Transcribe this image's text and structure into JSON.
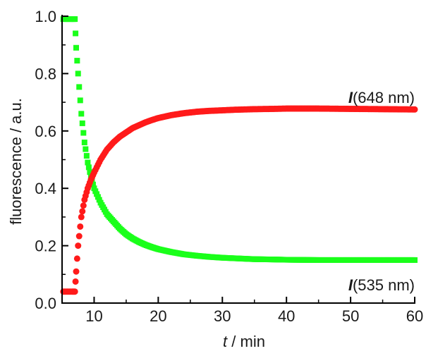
{
  "chart_data": {
    "type": "scatter",
    "xlabel_var": "t",
    "xlabel_unit": " / min",
    "ylabel": "fluorescence / a.u.",
    "xlim": [
      5,
      60
    ],
    "ylim": [
      0,
      1.0
    ],
    "x_ticks": [
      10,
      20,
      30,
      40,
      50,
      60
    ],
    "y_ticks": [
      "0.0",
      "0.2",
      "0.4",
      "0.6",
      "0.8",
      "1.0"
    ],
    "grid": false,
    "series": [
      {
        "name": "I(648 nm)",
        "label_var": "I",
        "label_text": "(648 nm)",
        "color": "#ff1a1a",
        "marker": "circle",
        "points": [
          [
            5.2,
            0.04
          ],
          [
            6.0,
            0.04
          ],
          [
            6.6,
            0.04
          ],
          [
            7.0,
            0.04
          ],
          [
            7.2,
            0.11
          ],
          [
            7.5,
            0.2
          ],
          [
            8.0,
            0.3
          ],
          [
            8.5,
            0.36
          ],
          [
            9.0,
            0.4
          ],
          [
            9.5,
            0.43
          ],
          [
            10,
            0.455
          ],
          [
            11,
            0.5
          ],
          [
            12,
            0.535
          ],
          [
            13,
            0.56
          ],
          [
            14,
            0.58
          ],
          [
            15,
            0.595
          ],
          [
            16,
            0.61
          ],
          [
            17,
            0.62
          ],
          [
            18,
            0.63
          ],
          [
            19,
            0.638
          ],
          [
            20,
            0.645
          ],
          [
            22,
            0.655
          ],
          [
            24,
            0.662
          ],
          [
            26,
            0.667
          ],
          [
            28,
            0.67
          ],
          [
            30,
            0.672
          ],
          [
            32,
            0.674
          ],
          [
            35,
            0.676
          ],
          [
            38,
            0.677
          ],
          [
            40,
            0.678
          ],
          [
            45,
            0.678
          ],
          [
            50,
            0.677
          ],
          [
            55,
            0.676
          ],
          [
            60,
            0.675
          ]
        ]
      },
      {
        "name": "I(535 nm)",
        "label_var": "I",
        "label_text": "(535 nm)",
        "color": "#1aff1a",
        "marker": "square",
        "points": [
          [
            5.2,
            0.99
          ],
          [
            6.0,
            0.99
          ],
          [
            6.6,
            0.99
          ],
          [
            7.0,
            0.99
          ],
          [
            7.2,
            0.89
          ],
          [
            7.5,
            0.8
          ],
          [
            8.0,
            0.66
          ],
          [
            8.5,
            0.56
          ],
          [
            9.0,
            0.49
          ],
          [
            9.5,
            0.44
          ],
          [
            10,
            0.4
          ],
          [
            11,
            0.35
          ],
          [
            12,
            0.31
          ],
          [
            13,
            0.285
          ],
          [
            14,
            0.26
          ],
          [
            15,
            0.24
          ],
          [
            16,
            0.225
          ],
          [
            17,
            0.213
          ],
          [
            18,
            0.203
          ],
          [
            19,
            0.195
          ],
          [
            20,
            0.188
          ],
          [
            22,
            0.178
          ],
          [
            24,
            0.17
          ],
          [
            26,
            0.165
          ],
          [
            28,
            0.161
          ],
          [
            30,
            0.158
          ],
          [
            32,
            0.156
          ],
          [
            35,
            0.153
          ],
          [
            38,
            0.152
          ],
          [
            40,
            0.151
          ],
          [
            45,
            0.15
          ],
          [
            50,
            0.15
          ],
          [
            55,
            0.15
          ],
          [
            60,
            0.15
          ]
        ]
      }
    ]
  }
}
